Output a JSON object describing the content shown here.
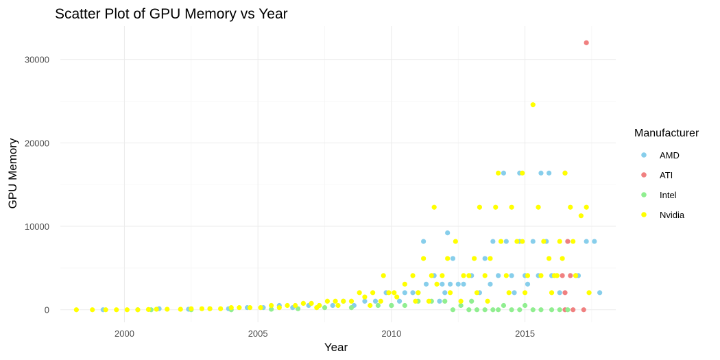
{
  "chart_data": {
    "type": "scatter",
    "title": "Scatter Plot of GPU Memory vs Year",
    "xlabel": "Year",
    "ylabel": "GPU Memory",
    "xlim": [
      1997.6,
      2018.4
    ],
    "ylim": [
      -1500,
      34000
    ],
    "x_ticks": [
      2000,
      2005,
      2010,
      2015
    ],
    "y_ticks": [
      0,
      10000,
      20000,
      30000
    ],
    "x_tick_labels": [
      "2000",
      "2005",
      "2010",
      "2015"
    ],
    "y_tick_labels": [
      "0",
      "10000",
      "20000",
      "30000"
    ],
    "grid": true,
    "legend": {
      "title": "Manufacturer",
      "position": "right"
    },
    "series": [
      {
        "name": "AMD",
        "color": "#87ceeb",
        "points": [
          [
            1999.2,
            0
          ],
          [
            2000.5,
            0
          ],
          [
            2001.3,
            128
          ],
          [
            2002.4,
            64
          ],
          [
            2003.2,
            128
          ],
          [
            2003.9,
            128
          ],
          [
            2004.6,
            256
          ],
          [
            2005.2,
            256
          ],
          [
            2005.8,
            512
          ],
          [
            2006.3,
            256
          ],
          [
            2006.9,
            512
          ],
          [
            2007.3,
            512
          ],
          [
            2007.8,
            512
          ],
          [
            2008.2,
            1024
          ],
          [
            2008.6,
            512
          ],
          [
            2009.0,
            1024
          ],
          [
            2009.4,
            1024
          ],
          [
            2009.8,
            2048
          ],
          [
            2010.3,
            1024
          ],
          [
            2010.5,
            2048
          ],
          [
            2010.8,
            2048
          ],
          [
            2011.0,
            2048
          ],
          [
            2011.3,
            3072
          ],
          [
            2011.6,
            4096
          ],
          [
            2011.9,
            3072
          ],
          [
            2012.0,
            2048
          ],
          [
            2012.2,
            3072
          ],
          [
            2012.3,
            6144
          ],
          [
            2012.5,
            3072
          ],
          [
            2012.7,
            3072
          ],
          [
            2013.0,
            4096
          ],
          [
            2013.3,
            2048
          ],
          [
            2013.5,
            6144
          ],
          [
            2013.8,
            8192
          ],
          [
            2014.0,
            4096
          ],
          [
            2014.3,
            8192
          ],
          [
            2014.5,
            4096
          ],
          [
            2014.8,
            8192
          ],
          [
            2015.0,
            4096
          ],
          [
            2015.3,
            8192
          ],
          [
            2015.5,
            4096
          ],
          [
            2015.8,
            8192
          ],
          [
            2016.0,
            4096
          ],
          [
            2016.3,
            2048
          ],
          [
            2016.6,
            8192
          ],
          [
            2017.0,
            4096
          ],
          [
            2017.3,
            8192
          ],
          [
            2017.6,
            8192
          ],
          [
            2017.8,
            2048
          ],
          [
            2011.2,
            8192
          ],
          [
            2012.1,
            9216
          ],
          [
            2014.2,
            16384
          ],
          [
            2014.8,
            16384
          ],
          [
            2015.6,
            16384
          ],
          [
            2015.9,
            16384
          ],
          [
            2013.7,
            3072
          ],
          [
            2014.6,
            2048
          ],
          [
            2015.1,
            3072
          ],
          [
            2011.8,
            1024
          ],
          [
            2010.0,
            512
          ]
        ]
      },
      {
        "name": "ATI",
        "color": "#f08080",
        "points": [
          [
            2016.5,
            16384
          ],
          [
            2016.6,
            8192
          ],
          [
            2016.4,
            4096
          ],
          [
            2016.5,
            2048
          ],
          [
            2016.7,
            4096
          ],
          [
            2016.5,
            0
          ],
          [
            2016.8,
            0
          ],
          [
            2017.2,
            0
          ],
          [
            2016.9,
            4096
          ],
          [
            2017.3,
            32000
          ]
        ]
      },
      {
        "name": "Intel",
        "color": "#90ee90",
        "points": [
          [
            2001.0,
            0
          ],
          [
            2002.5,
            0
          ],
          [
            2004.0,
            0
          ],
          [
            2005.5,
            64
          ],
          [
            2006.5,
            128
          ],
          [
            2007.5,
            256
          ],
          [
            2008.5,
            256
          ],
          [
            2009.5,
            512
          ],
          [
            2010.0,
            512
          ],
          [
            2010.5,
            512
          ],
          [
            2011.0,
            1024
          ],
          [
            2011.5,
            1024
          ],
          [
            2012.0,
            1024
          ],
          [
            2012.3,
            0
          ],
          [
            2012.6,
            512
          ],
          [
            2013.0,
            1024
          ],
          [
            2013.5,
            0
          ],
          [
            2013.8,
            0
          ],
          [
            2014.0,
            0
          ],
          [
            2014.2,
            512
          ],
          [
            2014.5,
            0
          ],
          [
            2014.8,
            0
          ],
          [
            2015.0,
            512
          ],
          [
            2015.3,
            0
          ],
          [
            2015.6,
            0
          ],
          [
            2016.0,
            0
          ],
          [
            2016.3,
            0
          ],
          [
            2016.6,
            0
          ],
          [
            2012.9,
            0
          ],
          [
            2013.2,
            0
          ]
        ]
      },
      {
        "name": "Nvidia",
        "color": "#ffff00",
        "points": [
          [
            1998.2,
            0
          ],
          [
            1998.8,
            0
          ],
          [
            1999.3,
            0
          ],
          [
            1999.7,
            0
          ],
          [
            2000.1,
            0
          ],
          [
            2000.5,
            0
          ],
          [
            2000.9,
            32
          ],
          [
            2001.2,
            64
          ],
          [
            2001.6,
            64
          ],
          [
            2002.1,
            64
          ],
          [
            2002.5,
            128
          ],
          [
            2002.9,
            128
          ],
          [
            2003.2,
            128
          ],
          [
            2003.6,
            128
          ],
          [
            2004.0,
            256
          ],
          [
            2004.3,
            256
          ],
          [
            2004.7,
            256
          ],
          [
            2005.1,
            256
          ],
          [
            2005.5,
            512
          ],
          [
            2005.8,
            256
          ],
          [
            2006.1,
            512
          ],
          [
            2006.4,
            512
          ],
          [
            2006.7,
            768
          ],
          [
            2007.0,
            768
          ],
          [
            2007.3,
            512
          ],
          [
            2007.6,
            1024
          ],
          [
            2007.9,
            1024
          ],
          [
            2008.2,
            1024
          ],
          [
            2008.5,
            1024
          ],
          [
            2008.8,
            2048
          ],
          [
            2009.0,
            1536
          ],
          [
            2009.3,
            2048
          ],
          [
            2009.6,
            1024
          ],
          [
            2009.9,
            2048
          ],
          [
            2010.2,
            1536
          ],
          [
            2010.5,
            3072
          ],
          [
            2010.8,
            4096
          ],
          [
            2011.0,
            2048
          ],
          [
            2011.2,
            6144
          ],
          [
            2011.5,
            4096
          ],
          [
            2011.7,
            3072
          ],
          [
            2011.9,
            4096
          ],
          [
            2012.1,
            6144
          ],
          [
            2012.4,
            8192
          ],
          [
            2012.7,
            4096
          ],
          [
            2012.9,
            4096
          ],
          [
            2013.1,
            6144
          ],
          [
            2013.3,
            12288
          ],
          [
            2013.5,
            4096
          ],
          [
            2013.7,
            6144
          ],
          [
            2013.9,
            12288
          ],
          [
            2014.1,
            8192
          ],
          [
            2014.3,
            4096
          ],
          [
            2014.5,
            12288
          ],
          [
            2014.7,
            8192
          ],
          [
            2014.9,
            8192
          ],
          [
            2015.1,
            4096
          ],
          [
            2015.3,
            24576
          ],
          [
            2015.5,
            12288
          ],
          [
            2015.7,
            8192
          ],
          [
            2015.9,
            6144
          ],
          [
            2016.1,
            4096
          ],
          [
            2016.3,
            8192
          ],
          [
            2016.5,
            16384
          ],
          [
            2016.7,
            12288
          ],
          [
            2016.9,
            4096
          ],
          [
            2017.1,
            11264
          ],
          [
            2017.3,
            12288
          ],
          [
            2011.6,
            12288
          ],
          [
            2014.0,
            16384
          ],
          [
            2014.9,
            16384
          ],
          [
            2016.4,
            6144
          ],
          [
            2016.8,
            8192
          ],
          [
            2015.0,
            2048
          ],
          [
            2013.2,
            2048
          ],
          [
            2012.2,
            2048
          ],
          [
            2010.9,
            1024
          ],
          [
            2009.2,
            512
          ],
          [
            2008.0,
            512
          ],
          [
            2007.2,
            256
          ],
          [
            2013.6,
            1024
          ],
          [
            2014.4,
            2048
          ],
          [
            2015.6,
            4096
          ],
          [
            2016.0,
            2048
          ],
          [
            2016.2,
            4096
          ],
          [
            2017.4,
            2048
          ],
          [
            2012.6,
            1024
          ],
          [
            2011.4,
            1024
          ],
          [
            2010.1,
            2048
          ],
          [
            2009.7,
            4096
          ]
        ]
      }
    ]
  }
}
